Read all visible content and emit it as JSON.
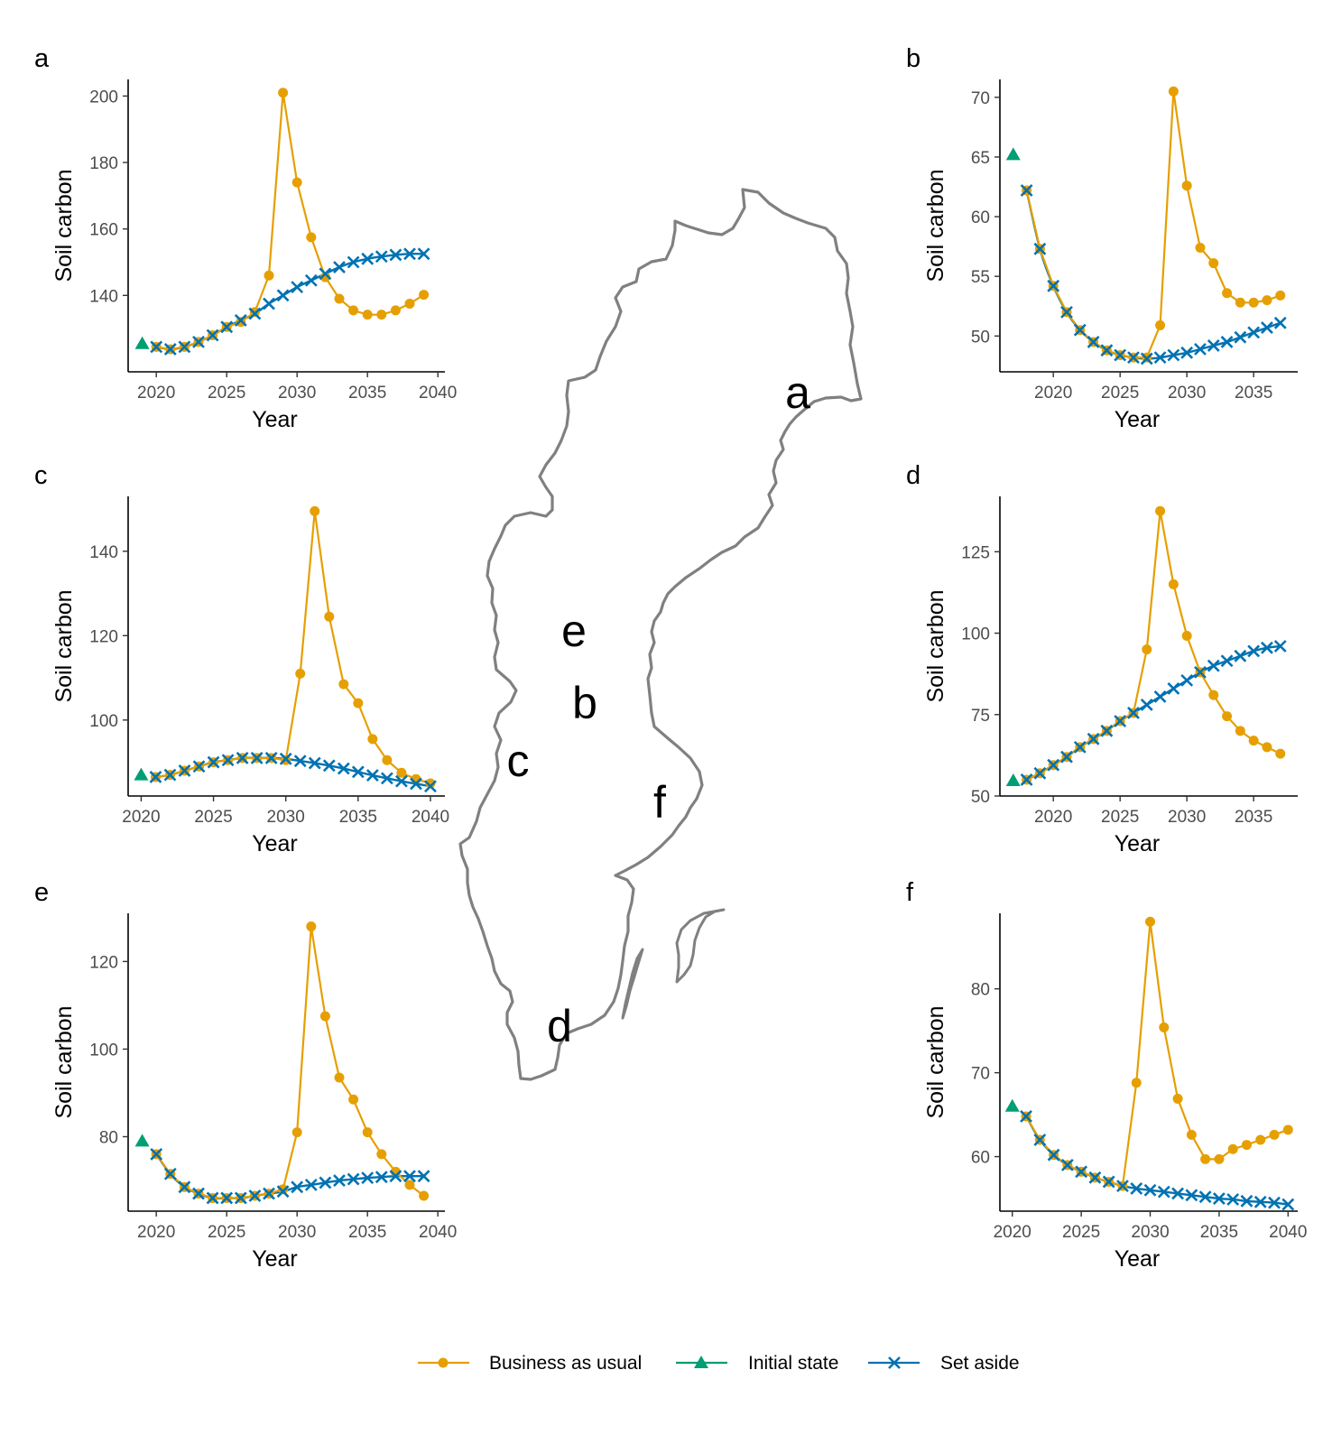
{
  "legend": {
    "bau": "Business as usual",
    "init": "Initial state",
    "setaside": "Set aside"
  },
  "colors": {
    "bau": "#E69F00",
    "init": "#009E73",
    "setaside": "#0072B2",
    "map": "#808080"
  },
  "map_labels": [
    "a",
    "e",
    "b",
    "c",
    "f",
    "d"
  ],
  "chart_data": [
    {
      "type": "line",
      "panel": "a",
      "xlabel": "Year",
      "ylabel": "Soil carbon",
      "xlim": [
        2018,
        2040.5
      ],
      "ylim": [
        117,
        205
      ],
      "xticks": [
        2020,
        2025,
        2030,
        2035,
        2040
      ],
      "yticks": [
        140,
        160,
        180,
        200
      ],
      "initial": {
        "x": 2019,
        "y": 125.5
      },
      "bau": {
        "x": [
          2020,
          2021,
          2022,
          2023,
          2024,
          2025,
          2026,
          2027,
          2028,
          2029,
          2030,
          2031,
          2032,
          2033,
          2034,
          2035,
          2036,
          2037,
          2038,
          2039
        ],
        "y": [
          124.5,
          123.8,
          124.5,
          126,
          128,
          130.5,
          132,
          135,
          146,
          201,
          174,
          157.5,
          145.5,
          139,
          135.5,
          134.2,
          134.2,
          135.5,
          137.5,
          140.2
        ]
      },
      "setaside": {
        "x": [
          2020,
          2021,
          2022,
          2023,
          2024,
          2025,
          2026,
          2027,
          2028,
          2029,
          2030,
          2031,
          2032,
          2033,
          2034,
          2035,
          2036,
          2037,
          2038,
          2039
        ],
        "y": [
          124.5,
          123.8,
          124.5,
          126,
          128,
          130.5,
          132.5,
          134.5,
          137.5,
          140,
          142.5,
          144.5,
          146.5,
          148.5,
          150,
          151,
          151.7,
          152.2,
          152.5,
          152.5
        ]
      }
    },
    {
      "type": "line",
      "panel": "b",
      "xlabel": "Year",
      "ylabel": "Soil carbon",
      "xlim": [
        2016,
        2038.3
      ],
      "ylim": [
        47,
        71.5
      ],
      "xticks": [
        2020,
        2025,
        2030,
        2035
      ],
      "yticks": [
        50,
        55,
        60,
        65,
        70
      ],
      "initial": {
        "x": 2017,
        "y": 65.2
      },
      "bau": {
        "x": [
          2018,
          2019,
          2020,
          2021,
          2022,
          2023,
          2024,
          2025,
          2026,
          2027,
          2028,
          2029,
          2030,
          2031,
          2032,
          2033,
          2034,
          2035,
          2036,
          2037
        ],
        "y": [
          62.2,
          57.3,
          54.2,
          52,
          50.5,
          49.5,
          48.8,
          48.4,
          48.2,
          48.2,
          50.9,
          70.5,
          62.6,
          57.4,
          56.1,
          53.6,
          52.8,
          52.8,
          53,
          53.4
        ]
      },
      "setaside": {
        "x": [
          2018,
          2019,
          2020,
          2021,
          2022,
          2023,
          2024,
          2025,
          2026,
          2027,
          2028,
          2029,
          2030,
          2031,
          2032,
          2033,
          2034,
          2035,
          2036,
          2037
        ],
        "y": [
          62.2,
          57.3,
          54.2,
          52,
          50.5,
          49.5,
          48.8,
          48.4,
          48.2,
          48.1,
          48.2,
          48.4,
          48.6,
          48.9,
          49.2,
          49.5,
          49.9,
          50.3,
          50.7,
          51.1
        ]
      }
    },
    {
      "type": "line",
      "panel": "c",
      "xlabel": "Year",
      "ylabel": "Soil carbon",
      "xlim": [
        2019.1,
        2041
      ],
      "ylim": [
        82,
        153
      ],
      "xticks": [
        2020,
        2025,
        2030,
        2035,
        2040
      ],
      "yticks": [
        100,
        120,
        140
      ],
      "initial": {
        "x": 2020,
        "y": 87
      },
      "bau": {
        "x": [
          2021,
          2022,
          2023,
          2024,
          2025,
          2026,
          2027,
          2028,
          2029,
          2030,
          2031,
          2032,
          2033,
          2034,
          2035,
          2036,
          2037,
          2038,
          2039,
          2040
        ],
        "y": [
          86.5,
          87,
          88,
          89,
          90,
          90.5,
          91,
          91,
          91,
          90.5,
          111,
          149.5,
          124.5,
          108.5,
          104,
          95.5,
          90.5,
          87.5,
          86,
          85
        ]
      },
      "setaside": {
        "x": [
          2021,
          2022,
          2023,
          2024,
          2025,
          2026,
          2027,
          2028,
          2029,
          2030,
          2031,
          2032,
          2033,
          2034,
          2035,
          2036,
          2037,
          2038,
          2039,
          2040
        ],
        "y": [
          86.5,
          87,
          88,
          89,
          90,
          90.5,
          91,
          91,
          91,
          90.8,
          90.3,
          89.8,
          89.2,
          88.5,
          87.7,
          86.9,
          86.2,
          85.5,
          84.9,
          84.3
        ]
      }
    },
    {
      "type": "line",
      "panel": "d",
      "xlabel": "Year",
      "ylabel": "Soil carbon",
      "xlim": [
        2016,
        2038.3
      ],
      "ylim": [
        50,
        142
      ],
      "xticks": [
        2020,
        2025,
        2030,
        2035
      ],
      "yticks": [
        50,
        75,
        100,
        125
      ],
      "initial": {
        "x": 2017,
        "y": 54.7
      },
      "bau": {
        "x": [
          2018,
          2019,
          2020,
          2021,
          2022,
          2023,
          2024,
          2025,
          2026,
          2027,
          2028,
          2029,
          2030,
          2031,
          2032,
          2033,
          2034,
          2035,
          2036,
          2037
        ],
        "y": [
          55,
          57,
          59.5,
          62,
          65,
          67.5,
          70,
          73,
          75.5,
          95,
          137.5,
          115,
          99.2,
          88,
          81,
          74.5,
          70,
          67,
          65,
          63
        ]
      },
      "setaside": {
        "x": [
          2018,
          2019,
          2020,
          2021,
          2022,
          2023,
          2024,
          2025,
          2026,
          2027,
          2028,
          2029,
          2030,
          2031,
          2032,
          2033,
          2034,
          2035,
          2036,
          2037
        ],
        "y": [
          55,
          57,
          59.5,
          62,
          65,
          67.5,
          70,
          73,
          75.5,
          78,
          80.5,
          83,
          85.5,
          88,
          90,
          91.5,
          93,
          94.5,
          95.5,
          96
        ]
      }
    },
    {
      "type": "line",
      "panel": "e",
      "xlabel": "Year",
      "ylabel": "Soil carbon",
      "xlim": [
        2018,
        2040.5
      ],
      "ylim": [
        63,
        131
      ],
      "xticks": [
        2020,
        2025,
        2030,
        2035,
        2040
      ],
      "yticks": [
        80,
        100,
        120
      ],
      "initial": {
        "x": 2019,
        "y": 79
      },
      "bau": {
        "x": [
          2020,
          2021,
          2022,
          2023,
          2024,
          2025,
          2026,
          2027,
          2028,
          2029,
          2030,
          2031,
          2032,
          2033,
          2034,
          2035,
          2036,
          2037,
          2038,
          2039
        ],
        "y": [
          76,
          71.5,
          68.5,
          67,
          66,
          66,
          66,
          66.5,
          67,
          68,
          81,
          128,
          107.5,
          93.5,
          88.5,
          81,
          76,
          72,
          69,
          66.5
        ]
      },
      "setaside": {
        "x": [
          2020,
          2021,
          2022,
          2023,
          2024,
          2025,
          2026,
          2027,
          2028,
          2029,
          2030,
          2031,
          2032,
          2033,
          2034,
          2035,
          2036,
          2037,
          2038,
          2039
        ],
        "y": [
          76,
          71.5,
          68.5,
          67,
          66,
          66,
          66,
          66.5,
          67,
          67.5,
          68.5,
          69,
          69.5,
          70,
          70.3,
          70.6,
          70.8,
          71,
          71,
          71
        ]
      }
    },
    {
      "type": "line",
      "panel": "f",
      "xlabel": "Year",
      "ylabel": "Soil carbon",
      "xlim": [
        2019.1,
        2040.7
      ],
      "ylim": [
        53.5,
        89
      ],
      "xticks": [
        2020,
        2025,
        2030,
        2035,
        2040
      ],
      "yticks": [
        60,
        70,
        80
      ],
      "initial": {
        "x": 2020,
        "y": 66
      },
      "bau": {
        "x": [
          2021,
          2022,
          2023,
          2024,
          2025,
          2026,
          2027,
          2028,
          2029,
          2030,
          2031,
          2032,
          2033,
          2034,
          2035,
          2036,
          2037,
          2038,
          2039,
          2040
        ],
        "y": [
          64.8,
          62,
          60.2,
          59,
          58.2,
          57.5,
          57,
          56.5,
          68.8,
          88,
          75.4,
          66.9,
          62.6,
          59.7,
          59.7,
          60.9,
          61.4,
          62,
          62.6,
          63.2
        ]
      },
      "setaside": {
        "x": [
          2021,
          2022,
          2023,
          2024,
          2025,
          2026,
          2027,
          2028,
          2029,
          2030,
          2031,
          2032,
          2033,
          2034,
          2035,
          2036,
          2037,
          2038,
          2039,
          2040
        ],
        "y": [
          64.8,
          62,
          60.2,
          59,
          58.2,
          57.5,
          57,
          56.5,
          56.2,
          56,
          55.8,
          55.6,
          55.4,
          55.2,
          55,
          54.9,
          54.7,
          54.6,
          54.5,
          54.3
        ]
      }
    }
  ]
}
